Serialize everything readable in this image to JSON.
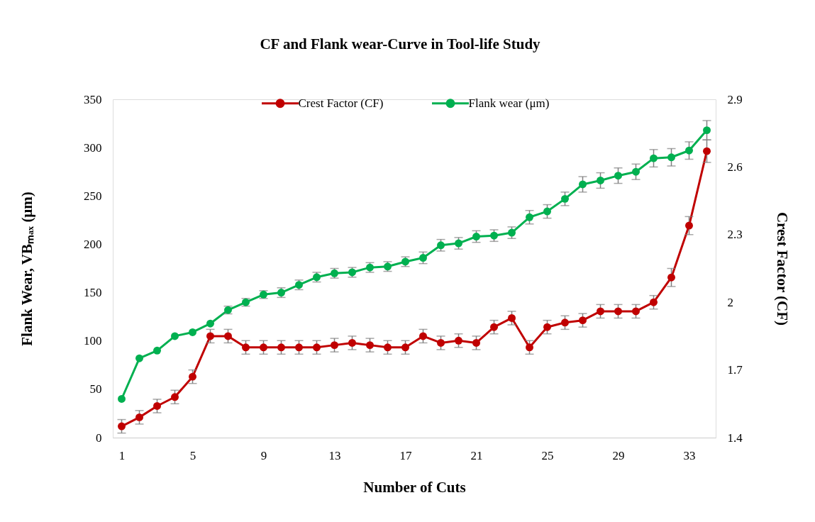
{
  "chart_data": {
    "type": "line",
    "title": "CF and Flank wear-Curve in Tool-life Study",
    "xlabel": "Number of Cuts",
    "ylabel": "Flank Wear, VBₘₐₓ (μm)",
    "y2label": "Crest Factor (CF)",
    "x": [
      1,
      2,
      3,
      4,
      5,
      6,
      7,
      8,
      9,
      10,
      11,
      12,
      13,
      14,
      15,
      16,
      17,
      18,
      19,
      20,
      21,
      22,
      23,
      24,
      25,
      26,
      27,
      28,
      29,
      30,
      31,
      32,
      33,
      34
    ],
    "xlim": [
      0.5,
      34.5
    ],
    "xticks": [
      1,
      5,
      9,
      13,
      17,
      21,
      25,
      29,
      33
    ],
    "ylim": [
      0,
      350
    ],
    "yticks": [
      0,
      50,
      100,
      150,
      200,
      250,
      300,
      350
    ],
    "y2lim": [
      1.4,
      2.9
    ],
    "y2ticks": [
      1.4,
      1.7,
      2,
      2.3,
      2.6,
      2.9
    ],
    "series": [
      {
        "name": "Crest Factor (CF)",
        "color": "#c00000",
        "axis": "y2",
        "values": [
          1.45,
          1.49,
          1.54,
          1.58,
          1.67,
          1.85,
          1.85,
          1.8,
          1.8,
          1.8,
          1.8,
          1.8,
          1.81,
          1.82,
          1.81,
          1.8,
          1.8,
          1.85,
          1.82,
          1.83,
          1.82,
          1.89,
          1.93,
          1.8,
          1.89,
          1.91,
          1.92,
          1.96,
          1.96,
          1.96,
          2.0,
          2.11,
          2.34,
          2.67
        ],
        "errors": [
          0.03,
          0.03,
          0.03,
          0.03,
          0.03,
          0.03,
          0.03,
          0.03,
          0.03,
          0.03,
          0.03,
          0.03,
          0.03,
          0.03,
          0.03,
          0.03,
          0.03,
          0.03,
          0.03,
          0.03,
          0.03,
          0.03,
          0.03,
          0.03,
          0.03,
          0.03,
          0.03,
          0.03,
          0.03,
          0.03,
          0.03,
          0.04,
          0.04,
          0.05
        ]
      },
      {
        "name": "Flank wear (μm)",
        "color": "#00b050",
        "axis": "y",
        "values": [
          40,
          82,
          90,
          105,
          109,
          118,
          132,
          140,
          148,
          150,
          158,
          166,
          170,
          171,
          176,
          177,
          182,
          186,
          199,
          201,
          208,
          209,
          212,
          228,
          234,
          247,
          262,
          266,
          271,
          275,
          289,
          290,
          297,
          318
        ],
        "errors": [
          null,
          null,
          null,
          null,
          null,
          null,
          4,
          4,
          4,
          5,
          5,
          5,
          5,
          5,
          5,
          5,
          5,
          6,
          6,
          6,
          6,
          6,
          6,
          7,
          7,
          7,
          8,
          8,
          8,
          8,
          9,
          9,
          9,
          10
        ]
      }
    ],
    "marker": "circle",
    "line_style": "solid",
    "grid": false,
    "legend": "top"
  }
}
